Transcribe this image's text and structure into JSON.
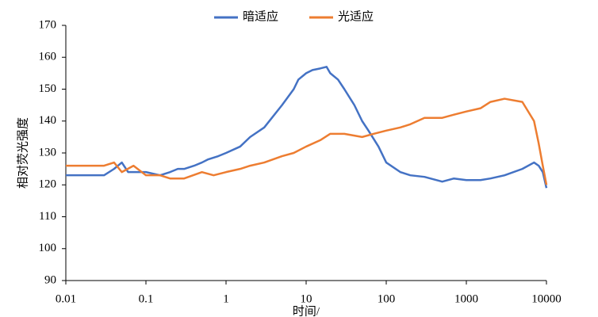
{
  "chart_data": {
    "type": "line",
    "xlabel": "时间/",
    "ylabel": "相对荧光强度",
    "xscale": "log",
    "legend": "top",
    "grid": false,
    "xlim": [
      0.01,
      10000
    ],
    "xticks": [
      0.01,
      0.1,
      1,
      10,
      100,
      1000,
      10000
    ],
    "ylim": [
      90,
      170
    ],
    "yticks": [
      90,
      100,
      110,
      120,
      130,
      140,
      150,
      160,
      170
    ],
    "series": [
      {
        "name": "暗适应",
        "color": "#4472c4",
        "x": [
          0.01,
          0.02,
          0.03,
          0.04,
          0.05,
          0.06,
          0.08,
          0.1,
          0.15,
          0.2,
          0.25,
          0.3,
          0.4,
          0.5,
          0.6,
          0.8,
          1,
          1.5,
          2,
          3,
          5,
          7,
          8,
          10,
          12,
          15,
          18,
          20,
          25,
          30,
          40,
          50,
          60,
          80,
          100,
          150,
          200,
          300,
          500,
          700,
          1000,
          1500,
          2000,
          3000,
          5000,
          7000,
          8000,
          9000,
          10000
        ],
        "values": [
          123,
          123,
          123,
          125,
          127,
          124,
          124,
          124,
          123,
          124,
          125,
          125,
          126,
          127,
          128,
          129,
          130,
          132,
          135,
          138,
          145,
          150,
          153,
          155,
          156,
          156.5,
          157,
          155,
          153,
          150,
          145,
          140,
          137,
          132,
          127,
          124,
          123,
          122.5,
          121,
          122,
          121.5,
          121.5,
          122,
          123,
          125,
          127,
          126,
          124,
          119
        ]
      },
      {
        "name": "光适应",
        "color": "#ed7d31",
        "x": [
          0.01,
          0.02,
          0.03,
          0.04,
          0.05,
          0.07,
          0.1,
          0.15,
          0.2,
          0.3,
          0.5,
          0.7,
          1,
          1.5,
          2,
          3,
          5,
          7,
          10,
          15,
          20,
          30,
          50,
          70,
          100,
          150,
          200,
          300,
          500,
          700,
          1000,
          1500,
          2000,
          3000,
          5000,
          7000,
          8000,
          9000,
          10000
        ],
        "values": [
          126,
          126,
          126,
          127,
          124,
          126,
          123,
          123,
          122,
          122,
          124,
          123,
          124,
          125,
          126,
          127,
          129,
          130,
          132,
          134,
          136,
          136,
          135,
          136,
          137,
          138,
          139,
          141,
          141,
          142,
          143,
          144,
          146,
          147,
          146,
          140,
          133,
          126,
          120
        ]
      }
    ]
  }
}
